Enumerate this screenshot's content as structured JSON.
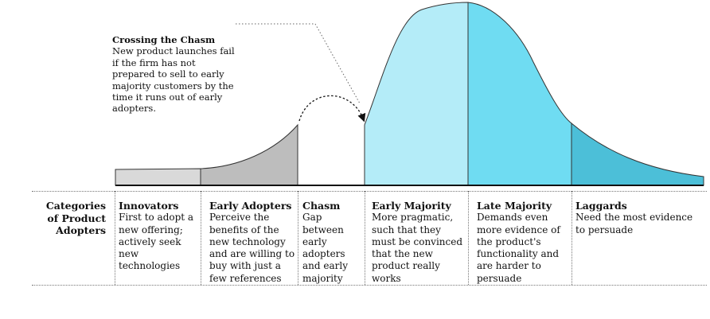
{
  "callout": {
    "title": "Crossing the Chasm",
    "body": "New product launches fail if the firm has not prepared to sell to early majority customers by the time it runs out of early adopters."
  },
  "categories_label": "Categories of Product Adopters",
  "segments": [
    {
      "key": "innovators",
      "name": "Innovators",
      "description": "First to adopt a new offering; actively seek new technologies",
      "color": "#d9d9d9"
    },
    {
      "key": "early-adopters",
      "name": "Early Adopters",
      "description": "Perceive the benefits of the new technology and are willing to buy with just a few references",
      "color": "#bdbdbd"
    },
    {
      "key": "chasm",
      "name": "Chasm",
      "description": "Gap between early adopters and early majority",
      "color": "#ffffff"
    },
    {
      "key": "early-majority",
      "name": "Early Majority",
      "description": "More pragmatic, such that they must be convinced that the new product really works",
      "color": "#b4ecf8"
    },
    {
      "key": "late-majority",
      "name": "Late Majority",
      "description": "Demands even more evidence of the product's functionality and are harder to persuade",
      "color": "#6fdcf2"
    },
    {
      "key": "laggards",
      "name": "Laggards",
      "description": "Need the most evidence to persuade",
      "color": "#4cbfd8"
    }
  ]
}
